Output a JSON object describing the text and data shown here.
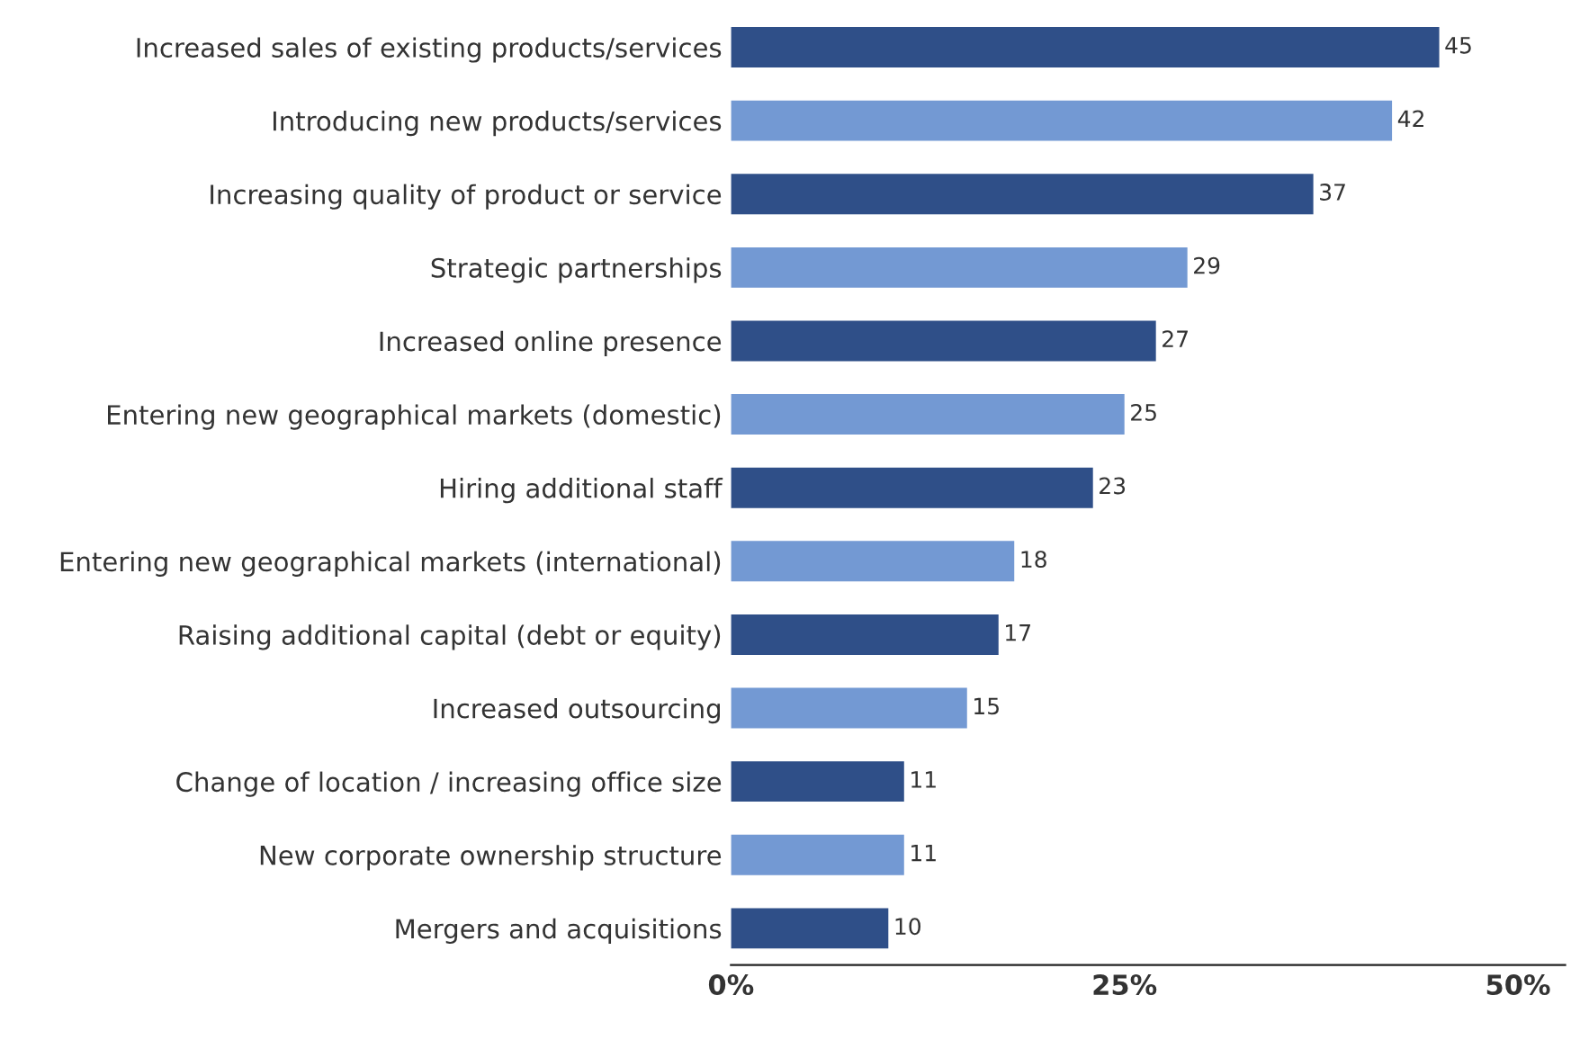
{
  "chart_data": {
    "type": "bar",
    "orientation": "horizontal",
    "categories": [
      "Increased sales of existing products/services",
      "Introducing new products/services",
      "Increasing quality of product or service",
      "Strategic partnerships",
      "Increased online presence",
      "Entering new geographical markets (domestic)",
      "Hiring additional staff",
      "Entering new geographical markets (international)",
      "Raising additional capital (debt or equity)",
      "Increased outsourcing",
      "Change of location / increasing office size",
      "New corporate ownership structure",
      "Mergers and acquisitions"
    ],
    "values": [
      45,
      42,
      37,
      29,
      27,
      25,
      23,
      18,
      17,
      15,
      11,
      11,
      10
    ],
    "colors": [
      "#2f4f88",
      "#7399d3",
      "#2f4f88",
      "#7399d3",
      "#2f4f88",
      "#7399d3",
      "#2f4f88",
      "#7399d3",
      "#2f4f88",
      "#7399d3",
      "#2f4f88",
      "#7399d3",
      "#2f4f88"
    ],
    "xlim": [
      0,
      53
    ],
    "xticks": [
      {
        "value": 0,
        "label": "0%"
      },
      {
        "value": 25,
        "label": "25%"
      },
      {
        "value": 50,
        "label": "50%"
      }
    ],
    "data_labels": true,
    "grid": false,
    "legend": false
  }
}
